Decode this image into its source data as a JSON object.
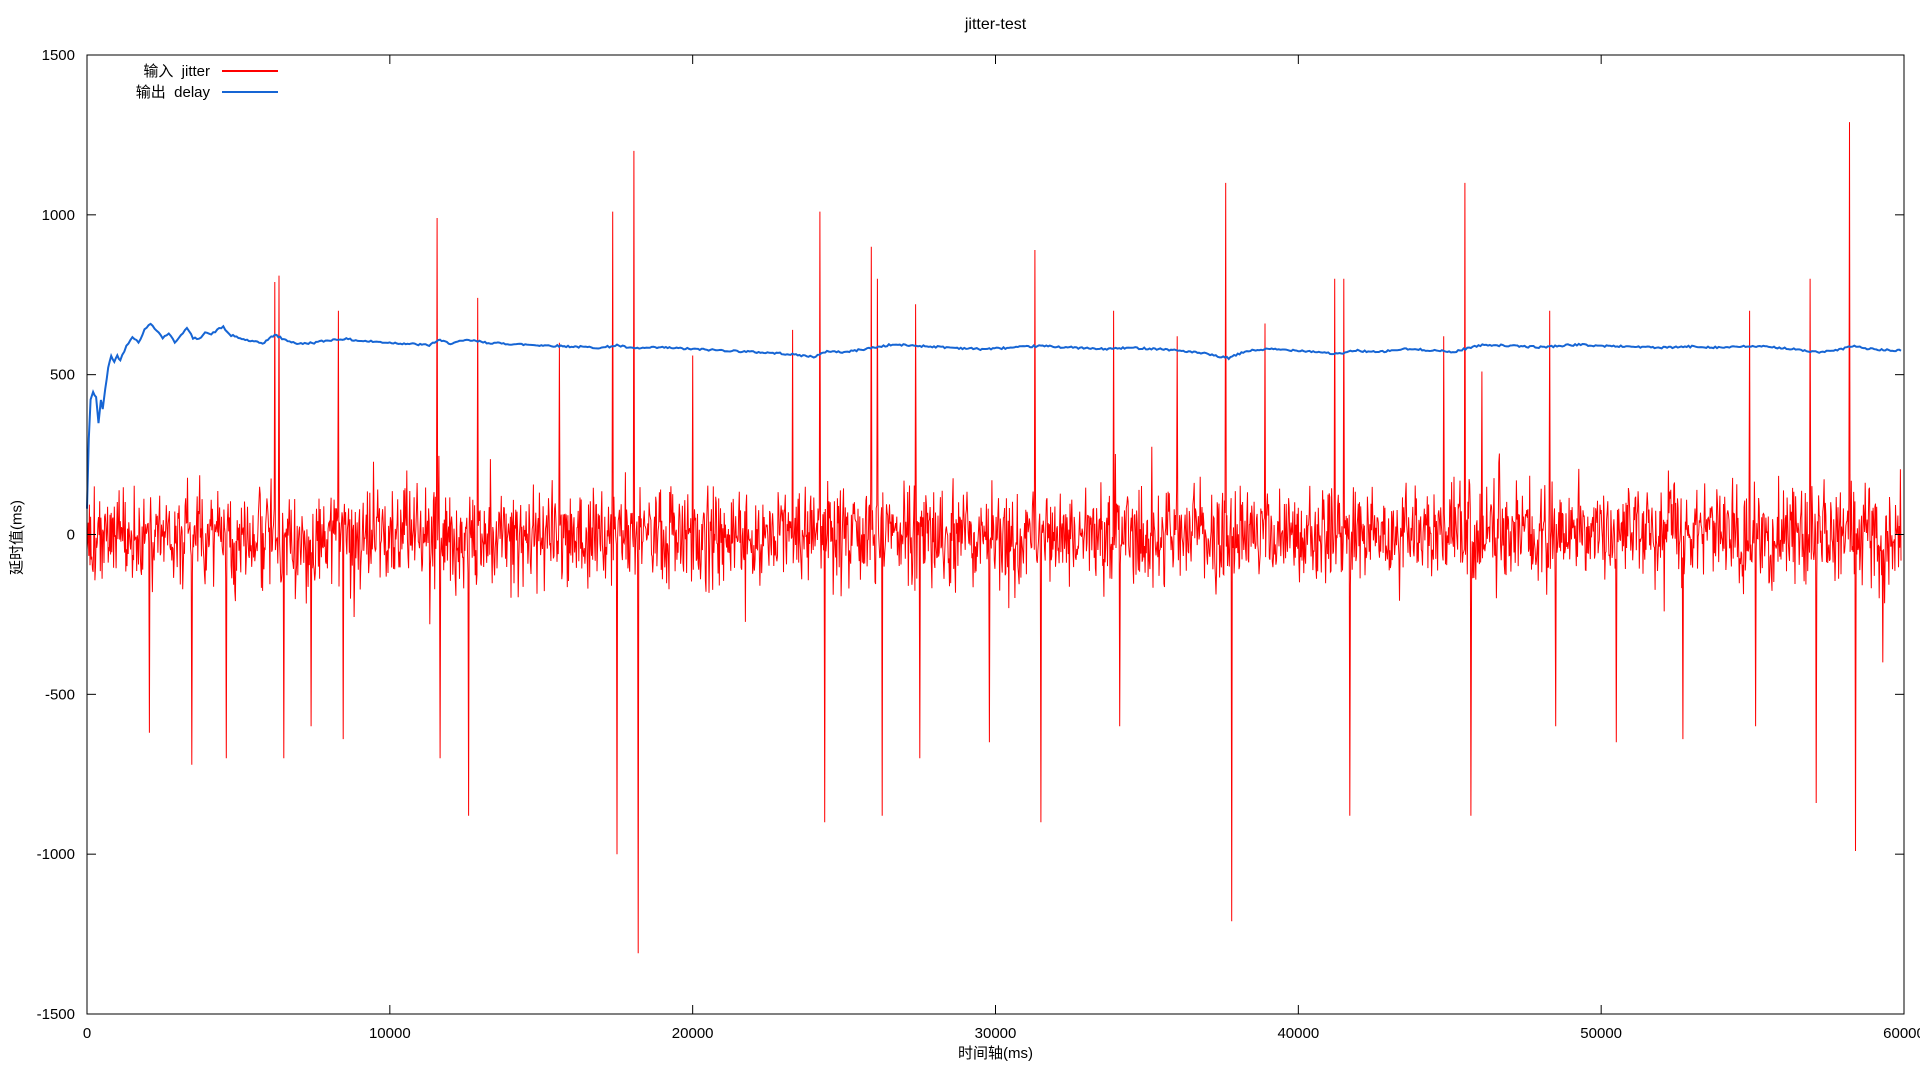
{
  "chart_data": {
    "type": "line",
    "title": "jitter-test",
    "xlabel": "时间轴(ms)",
    "ylabel": "延时值(ms)",
    "xlim": [
      0,
      60000
    ],
    "ylim": [
      -1500,
      1500
    ],
    "xticks": [
      0,
      10000,
      20000,
      30000,
      40000,
      50000,
      60000
    ],
    "yticks": [
      -1500,
      -1000,
      -500,
      0,
      500,
      1000,
      1500
    ],
    "grid": false,
    "legend_position": "top-left",
    "axis_color": "#000000",
    "series": [
      {
        "name": "输入  jitter",
        "color": "#ff0000",
        "kind": "noise",
        "x_start": 0,
        "x_end": 59900,
        "x_step": 20,
        "noise_std": 150,
        "burst_prob": 0.03,
        "burst_scale": 1.8,
        "clamp": 740,
        "seed": 1337,
        "spikes": [
          [
            2050,
            -620
          ],
          [
            3450,
            -720
          ],
          [
            4600,
            -700
          ],
          [
            6200,
            790
          ],
          [
            6330,
            810
          ],
          [
            6500,
            -700
          ],
          [
            7400,
            -600
          ],
          [
            8300,
            700
          ],
          [
            8450,
            -640
          ],
          [
            11550,
            990
          ],
          [
            11650,
            -700
          ],
          [
            12600,
            -880
          ],
          [
            12900,
            740
          ],
          [
            15600,
            600
          ],
          [
            17350,
            1010
          ],
          [
            17500,
            -1000
          ],
          [
            18050,
            1200
          ],
          [
            18200,
            -1310
          ],
          [
            20000,
            560
          ],
          [
            23300,
            640
          ],
          [
            24200,
            1010
          ],
          [
            24350,
            -900
          ],
          [
            25900,
            900
          ],
          [
            26100,
            800
          ],
          [
            26250,
            -880
          ],
          [
            27350,
            720
          ],
          [
            27500,
            -700
          ],
          [
            29800,
            -650
          ],
          [
            31300,
            890
          ],
          [
            31500,
            -900
          ],
          [
            33900,
            700
          ],
          [
            34100,
            -600
          ],
          [
            36000,
            620
          ],
          [
            37600,
            1100
          ],
          [
            37800,
            -1210
          ],
          [
            38900,
            660
          ],
          [
            41200,
            800
          ],
          [
            41500,
            800
          ],
          [
            41700,
            -880
          ],
          [
            44800,
            620
          ],
          [
            45500,
            1100
          ],
          [
            45700,
            -880
          ],
          [
            46050,
            510
          ],
          [
            48300,
            700
          ],
          [
            48500,
            -600
          ],
          [
            50500,
            -650
          ],
          [
            52700,
            -640
          ],
          [
            54900,
            700
          ],
          [
            55100,
            -600
          ],
          [
            56900,
            800
          ],
          [
            57100,
            -840
          ],
          [
            58200,
            1290
          ],
          [
            58400,
            -990
          ],
          [
            59300,
            -400
          ]
        ]
      },
      {
        "name": "输出  delay",
        "color": "#1665d4",
        "kind": "polyline",
        "wiggle": 3,
        "seed": 42,
        "points": [
          [
            0,
            80
          ],
          [
            60,
            300
          ],
          [
            120,
            420
          ],
          [
            200,
            445
          ],
          [
            300,
            430
          ],
          [
            380,
            350
          ],
          [
            460,
            420
          ],
          [
            520,
            390
          ],
          [
            600,
            455
          ],
          [
            700,
            520
          ],
          [
            800,
            560
          ],
          [
            900,
            540
          ],
          [
            1000,
            560
          ],
          [
            1100,
            545
          ],
          [
            1300,
            590
          ],
          [
            1500,
            620
          ],
          [
            1700,
            600
          ],
          [
            1900,
            640
          ],
          [
            2100,
            660
          ],
          [
            2300,
            640
          ],
          [
            2500,
            615
          ],
          [
            2700,
            630
          ],
          [
            2900,
            600
          ],
          [
            3100,
            625
          ],
          [
            3300,
            645
          ],
          [
            3500,
            615
          ],
          [
            3700,
            610
          ],
          [
            3900,
            635
          ],
          [
            4100,
            625
          ],
          [
            4300,
            640
          ],
          [
            4500,
            650
          ],
          [
            4700,
            625
          ],
          [
            5000,
            615
          ],
          [
            5400,
            605
          ],
          [
            5800,
            598
          ],
          [
            6200,
            625
          ],
          [
            6500,
            610
          ],
          [
            7000,
            596
          ],
          [
            7500,
            600
          ],
          [
            8000,
            608
          ],
          [
            8500,
            612
          ],
          [
            9000,
            606
          ],
          [
            9500,
            603
          ],
          [
            10000,
            600
          ],
          [
            10700,
            596
          ],
          [
            11300,
            592
          ],
          [
            11600,
            608
          ],
          [
            12000,
            598
          ],
          [
            12600,
            608
          ],
          [
            13200,
            600
          ],
          [
            14000,
            596
          ],
          [
            15000,
            592
          ],
          [
            16000,
            588
          ],
          [
            17000,
            584
          ],
          [
            17500,
            592
          ],
          [
            18000,
            582
          ],
          [
            19000,
            585
          ],
          [
            20000,
            580
          ],
          [
            21000,
            576
          ],
          [
            22000,
            571
          ],
          [
            23000,
            566
          ],
          [
            24000,
            556
          ],
          [
            24500,
            574
          ],
          [
            25000,
            570
          ],
          [
            26000,
            585
          ],
          [
            26600,
            594
          ],
          [
            27500,
            590
          ],
          [
            28500,
            585
          ],
          [
            29500,
            580
          ],
          [
            30500,
            584
          ],
          [
            31500,
            590
          ],
          [
            32500,
            585
          ],
          [
            33500,
            580
          ],
          [
            34500,
            584
          ],
          [
            35500,
            580
          ],
          [
            36200,
            574
          ],
          [
            36900,
            566
          ],
          [
            37400,
            556
          ],
          [
            37700,
            552
          ],
          [
            38300,
            574
          ],
          [
            39000,
            580
          ],
          [
            40000,
            576
          ],
          [
            40800,
            570
          ],
          [
            41300,
            564
          ],
          [
            41900,
            576
          ],
          [
            42600,
            570
          ],
          [
            43500,
            580
          ],
          [
            44500,
            576
          ],
          [
            45100,
            570
          ],
          [
            45700,
            586
          ],
          [
            46200,
            594
          ],
          [
            47000,
            590
          ],
          [
            48000,
            586
          ],
          [
            48600,
            590
          ],
          [
            49200,
            594
          ],
          [
            50000,
            590
          ],
          [
            51000,
            588
          ],
          [
            52000,
            584
          ],
          [
            53000,
            588
          ],
          [
            54000,
            585
          ],
          [
            55000,
            589
          ],
          [
            56000,
            584
          ],
          [
            56600,
            576
          ],
          [
            57200,
            570
          ],
          [
            57800,
            576
          ],
          [
            58300,
            590
          ],
          [
            58900,
            580
          ],
          [
            59500,
            576
          ],
          [
            59900,
            575
          ]
        ]
      }
    ]
  }
}
